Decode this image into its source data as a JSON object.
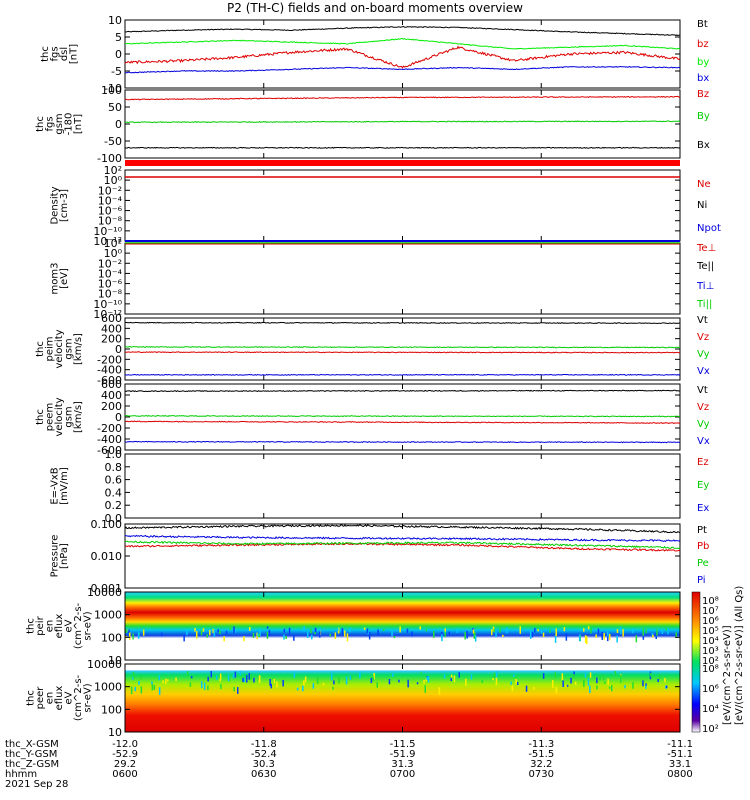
{
  "title": "P2 (TH-C) fields and on-board moments overview",
  "chart_data": [
    {
      "type": "line",
      "panel": "fgs_dsl",
      "ylabel": [
        "thc",
        "fgs",
        "dsl",
        "[nT]"
      ],
      "yticks": [
        "10",
        "5",
        "0",
        "-5",
        "-10"
      ],
      "ylim": [
        -10,
        10
      ],
      "series": [
        {
          "name": "Bt",
          "color": "#000000",
          "x": [
            0,
            0.1,
            0.2,
            0.3,
            0.4,
            0.5,
            0.6,
            0.7,
            0.8,
            0.9,
            1.0
          ],
          "values": [
            6.5,
            7.0,
            7.3,
            7.0,
            7.6,
            8.0,
            7.8,
            7.2,
            6.5,
            6.0,
            5.5
          ]
        },
        {
          "name": "bz",
          "color": "#dd0000",
          "x": [
            0,
            0.1,
            0.2,
            0.3,
            0.4,
            0.5,
            0.6,
            0.7,
            0.8,
            0.9,
            1.0
          ],
          "values": [
            -2.5,
            -2.0,
            -1.0,
            0.5,
            1.5,
            -4.0,
            2.0,
            -2.0,
            0.0,
            0.5,
            -1.5
          ]
        },
        {
          "name": "by",
          "color": "#00ee00",
          "x": [
            0,
            0.1,
            0.2,
            0.3,
            0.4,
            0.5,
            0.6,
            0.7,
            0.8,
            0.9,
            1.0
          ],
          "values": [
            3.0,
            3.5,
            4.0,
            3.5,
            3.0,
            4.5,
            3.0,
            1.5,
            2.0,
            2.5,
            1.5
          ]
        },
        {
          "name": "bx",
          "color": "#0000dd",
          "x": [
            0,
            0.1,
            0.2,
            0.3,
            0.4,
            0.5,
            0.6,
            0.7,
            0.8,
            0.9,
            1.0
          ],
          "values": [
            -5.5,
            -5.0,
            -5.0,
            -4.5,
            -4.0,
            -4.5,
            -4.0,
            -4.5,
            -3.8,
            -3.8,
            -4.0
          ]
        }
      ]
    },
    {
      "type": "line",
      "panel": "fgs_gsm",
      "ylabel": [
        "thc",
        "fgs",
        "gsm",
        "-180",
        "[nT]"
      ],
      "yticks": [
        "100",
        "50",
        "0",
        "-50",
        "-100"
      ],
      "ylim": [
        -100,
        100
      ],
      "series": [
        {
          "name": "Bz",
          "color": "#dd0000",
          "x": [
            0,
            0.5,
            1.0
          ],
          "values": [
            72,
            78,
            80
          ]
        },
        {
          "name": "By",
          "color": "#00cc00",
          "x": [
            0,
            0.5,
            1.0
          ],
          "values": [
            5,
            7,
            8
          ]
        },
        {
          "name": "Bx",
          "color": "#000000",
          "x": [
            0,
            0.5,
            1.0
          ],
          "values": [
            -70,
            -70,
            -70
          ]
        }
      ]
    },
    {
      "type": "line",
      "panel": "density",
      "ylabel": [
        "Density",
        "[cm-3]"
      ],
      "log": true,
      "yticks": [
        "10²",
        "10⁰",
        "10⁻²",
        "10⁻⁴",
        "10⁻⁶",
        "10⁻⁸",
        "10⁻¹⁰",
        "10⁻¹²"
      ],
      "series": [
        {
          "name": "Ne",
          "color": "#dd0000"
        },
        {
          "name": "Ni",
          "color": "#000000"
        },
        {
          "name": "Npot",
          "color": "#0000dd"
        }
      ]
    },
    {
      "type": "line",
      "panel": "temperature",
      "ylabel": [
        "mom3",
        "[eV]"
      ],
      "log": true,
      "yticks": [
        "10²",
        "10⁰",
        "10⁻²",
        "10⁻⁴",
        "10⁻⁶",
        "10⁻⁸",
        "10⁻¹⁰",
        "10⁻¹²"
      ],
      "series": [
        {
          "name": "Te⊥",
          "color": "#dd0000"
        },
        {
          "name": "Te||",
          "color": "#000000"
        },
        {
          "name": "Ti⊥",
          "color": "#0000dd"
        },
        {
          "name": "Ti||",
          "color": "#00cc00"
        }
      ]
    },
    {
      "type": "line",
      "panel": "peim_velocity",
      "ylabel": [
        "thc",
        "peim",
        "velocity",
        "gsm",
        "[km/s]"
      ],
      "yticks": [
        "600",
        "400",
        "200",
        "0",
        "-200",
        "-400",
        "-600"
      ],
      "ylim": [
        -600,
        600
      ],
      "series": [
        {
          "name": "Vt",
          "color": "#000000",
          "x": [
            0,
            1
          ],
          "values": [
            510,
            500
          ]
        },
        {
          "name": "Vz",
          "color": "#dd0000",
          "x": [
            0,
            1
          ],
          "values": [
            -60,
            -70
          ]
        },
        {
          "name": "Vy",
          "color": "#00cc00",
          "x": [
            0,
            1
          ],
          "values": [
            40,
            30
          ]
        },
        {
          "name": "Vx",
          "color": "#0000dd",
          "x": [
            0,
            1
          ],
          "values": [
            -500,
            -500
          ]
        }
      ]
    },
    {
      "type": "line",
      "panel": "peem_velocity",
      "ylabel": [
        "thc",
        "peem",
        "velocity",
        "gsm",
        "[km/s]"
      ],
      "yticks": [
        "600",
        "400",
        "200",
        "0",
        "-200",
        "-400",
        "-600"
      ],
      "ylim": [
        -600,
        600
      ],
      "series": [
        {
          "name": "Vt",
          "color": "#000000",
          "x": [
            0,
            1
          ],
          "values": [
            470,
            480
          ]
        },
        {
          "name": "Vz",
          "color": "#dd0000",
          "x": [
            0,
            1
          ],
          "values": [
            -80,
            -110
          ]
        },
        {
          "name": "Vy",
          "color": "#00cc00",
          "x": [
            0,
            1
          ],
          "values": [
            20,
            10
          ]
        },
        {
          "name": "Vx",
          "color": "#0000dd",
          "x": [
            0,
            1
          ],
          "values": [
            -450,
            -460
          ]
        }
      ]
    },
    {
      "type": "line",
      "panel": "efield",
      "ylabel": [
        "E=-VxB",
        "[mV/m]"
      ],
      "yticks": [
        "1.0",
        "0.8",
        "0.6",
        "0.4",
        "0.2",
        "0.0"
      ],
      "ylim": [
        0,
        1
      ],
      "series": [
        {
          "name": "Ez",
          "color": "#dd0000"
        },
        {
          "name": "Ey",
          "color": "#00cc00"
        },
        {
          "name": "Ex",
          "color": "#0000dd"
        }
      ]
    },
    {
      "type": "line",
      "panel": "pressure",
      "ylabel": [
        "Pressure",
        "[nPa]"
      ],
      "log": true,
      "yticks": [
        "0.100",
        "0.010",
        "0.001"
      ],
      "ylim": [
        0.001,
        0.1
      ],
      "series": [
        {
          "name": "Pt",
          "color": "#000000",
          "x": [
            0,
            0.2,
            0.4,
            0.6,
            0.8,
            1.0
          ],
          "values": [
            0.075,
            0.085,
            0.09,
            0.08,
            0.07,
            0.055
          ]
        },
        {
          "name": "Pb",
          "color": "#dd0000",
          "x": [
            0,
            0.2,
            0.4,
            0.6,
            0.8,
            1.0
          ],
          "values": [
            0.02,
            0.022,
            0.024,
            0.022,
            0.017,
            0.015
          ]
        },
        {
          "name": "Pe",
          "color": "#00cc00",
          "x": [
            0,
            0.2,
            0.4,
            0.6,
            0.8,
            1.0
          ],
          "values": [
            0.028,
            0.024,
            0.025,
            0.026,
            0.022,
            0.018
          ]
        },
        {
          "name": "Pi",
          "color": "#0000dd",
          "x": [
            0,
            0.2,
            0.4,
            0.6,
            0.8,
            1.0
          ],
          "values": [
            0.042,
            0.038,
            0.036,
            0.035,
            0.032,
            0.03
          ]
        }
      ]
    },
    {
      "type": "heatmap",
      "panel": "peir_spec",
      "ylabel": [
        "thc",
        "peir",
        "en",
        "eflux",
        "eV",
        "(cm^2-s-",
        "sr-eV)"
      ],
      "yticks": [
        "10000",
        "1000",
        "100",
        "10"
      ],
      "colorbar_ticks": [
        "10⁸",
        "10⁷",
        "10⁶",
        "10⁵",
        "10⁴",
        "10³",
        "10²"
      ],
      "colorbar_label": "[eV/(cm^2-s-sr-eV)] (All Qs)"
    },
    {
      "type": "heatmap",
      "panel": "peer_spec",
      "ylabel": [
        "thc",
        "peer",
        "en",
        "eflux",
        "eV",
        "(cm^2-s-",
        "sr-eV)"
      ],
      "yticks": [
        "10000",
        "1000",
        "100",
        "10"
      ],
      "colorbar_ticks": [
        "10⁸",
        "10⁶",
        "10⁴",
        "10²"
      ],
      "colorbar_label": "[eV/(cm^2-s-sr-eV)]"
    }
  ],
  "axis": {
    "rows": [
      {
        "label": "thc_X-GSM",
        "values": [
          "-12.0",
          "-11.8",
          "-11.5",
          "-11.3",
          "-11.1"
        ]
      },
      {
        "label": "thc_Y-GSM",
        "values": [
          "-52.9",
          "-52.4",
          "-51.9",
          "-51.5",
          "-51.1"
        ]
      },
      {
        "label": "thc_Z-GSM",
        "values": [
          "29.2",
          "30.3",
          "31.3",
          "32.2",
          "33.1"
        ]
      },
      {
        "label": "hhmm",
        "values": [
          "0600",
          "0630",
          "0700",
          "0730",
          "0800"
        ]
      }
    ],
    "date": "2021 Sep 28"
  }
}
